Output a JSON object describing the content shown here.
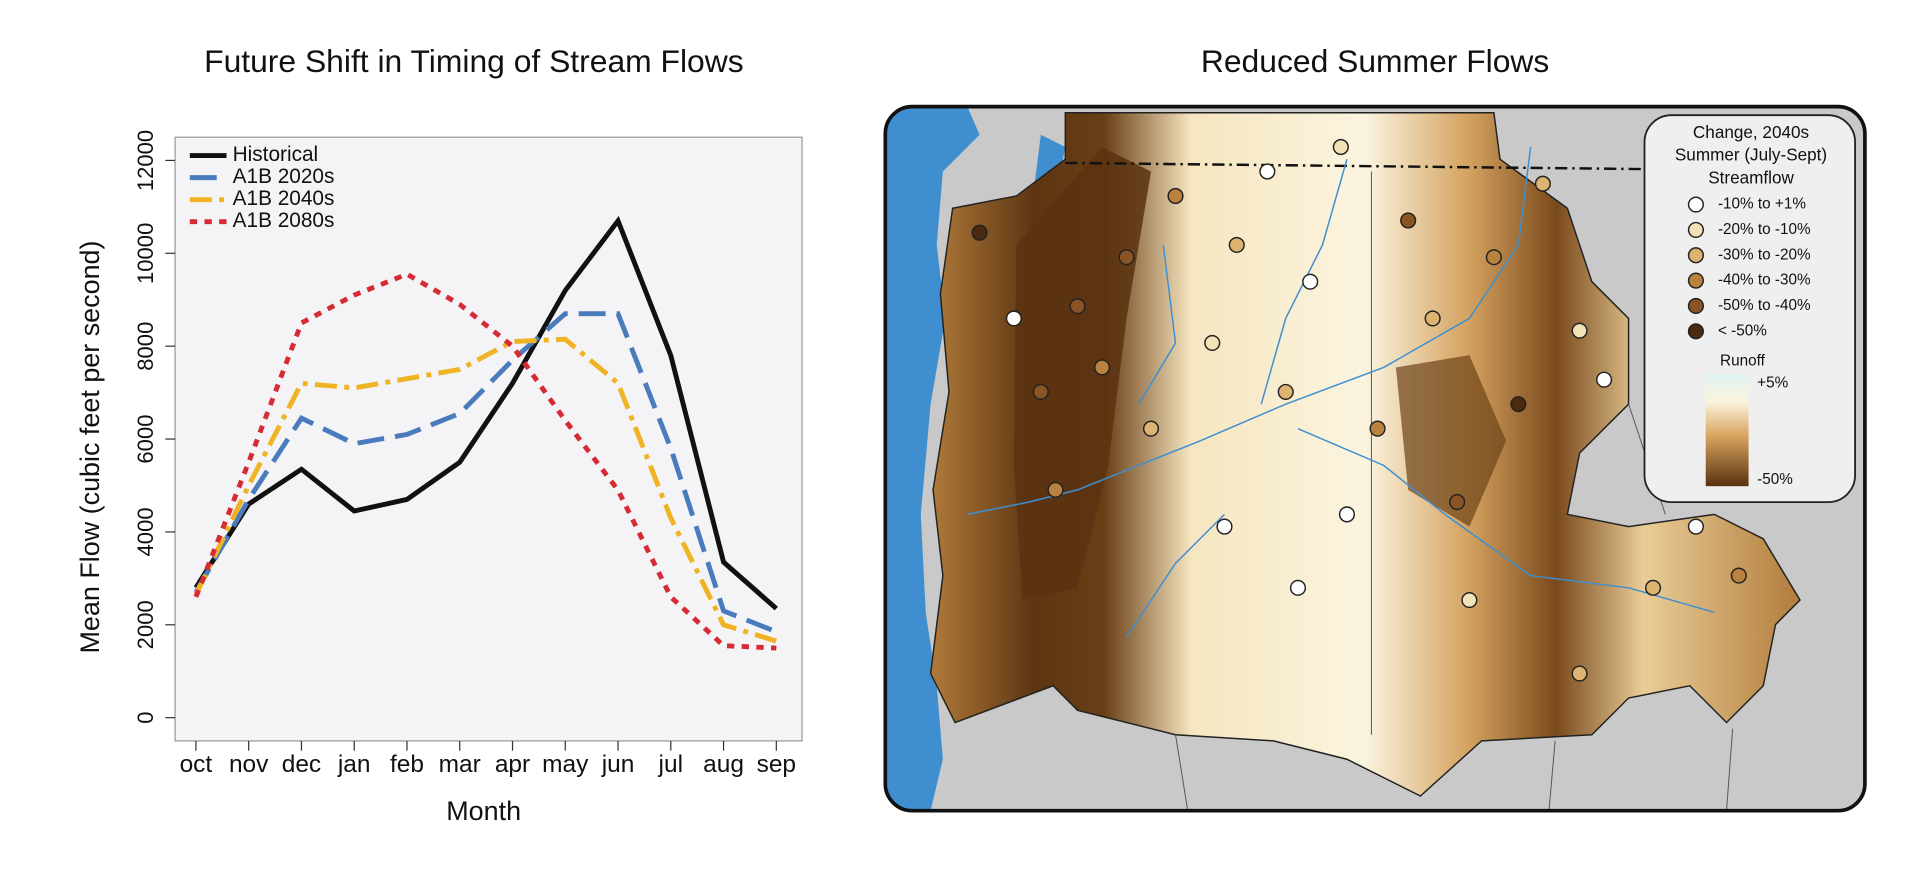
{
  "chart_data": {
    "type": "line",
    "title": "Future Shift in Timing of Stream Flows",
    "x_label": "Month",
    "y_label": "Mean Flow (cubic feet per second)",
    "categories": [
      "oct",
      "nov",
      "dec",
      "jan",
      "feb",
      "mar",
      "apr",
      "may",
      "jun",
      "jul",
      "aug",
      "sep"
    ],
    "series": [
      {
        "name": "Historical",
        "color": "#111111",
        "dash": "solid",
        "values": [
          2800,
          4600,
          5350,
          4450,
          4700,
          5500,
          7200,
          9200,
          10700,
          7800,
          3350,
          2350
        ]
      },
      {
        "name": "A1B 2020s",
        "color": "#4a7bbd",
        "dash": "long",
        "values": [
          2700,
          4700,
          6450,
          5900,
          6100,
          6550,
          7700,
          8700,
          8700,
          5800,
          2300,
          1850
        ]
      },
      {
        "name": "A1B 2040s",
        "color": "#f0b323",
        "dash": "dashdot",
        "values": [
          2650,
          5000,
          7200,
          7100,
          7300,
          7500,
          8100,
          8150,
          7200,
          4300,
          2000,
          1650
        ]
      },
      {
        "name": "A1B 2080s",
        "color": "#d62b35",
        "dash": "dotted",
        "values": [
          2600,
          5500,
          8500,
          9100,
          9550,
          8900,
          8000,
          6400,
          4900,
          2600,
          1550,
          1500
        ]
      }
    ],
    "ylim": [
      -500,
      12500
    ],
    "yticks": [
      0,
      2000,
      4000,
      6000,
      8000,
      10000,
      12000
    ],
    "legend": "upper-left"
  },
  "map": {
    "title": "Reduced Summer Flows",
    "legend": {
      "title": [
        "Change, 2040s",
        "Summer (July-Sept)",
        "Streamflow"
      ],
      "items": [
        {
          "label": "-10% to +1%",
          "color": "#ffffff"
        },
        {
          "label": "-20% to -10%",
          "color": "#f3e2b8"
        },
        {
          "label": "-30% to -20%",
          "color": "#dcb370"
        },
        {
          "label": "-40% to -30%",
          "color": "#b9823e"
        },
        {
          "label": "-50% to -40%",
          "color": "#8a5424"
        },
        {
          "label": "< -50%",
          "color": "#4a2a10"
        }
      ],
      "runoff_title": "Runoff",
      "runoff_high": "+5%",
      "runoff_low": "-50%"
    }
  }
}
